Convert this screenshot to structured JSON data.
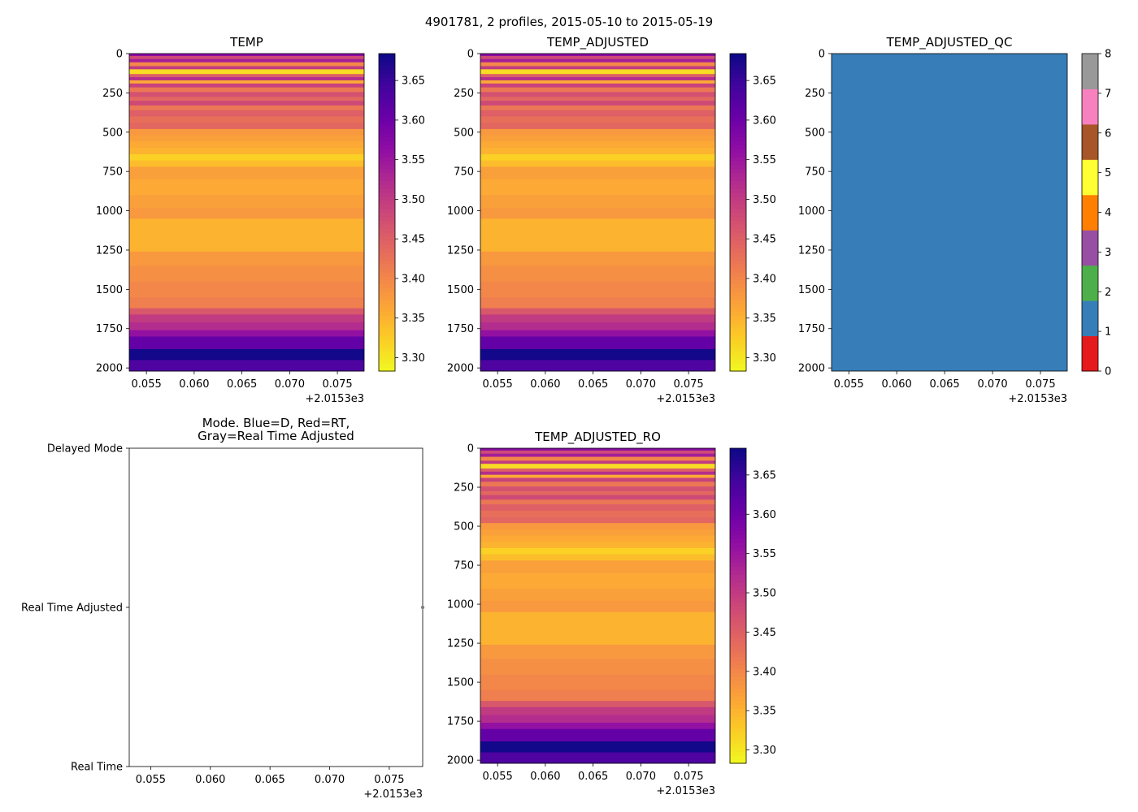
{
  "figure": {
    "suptitle": "4901781, 2 profiles, 2015-05-10 to 2015-05-19",
    "offset_label": "+2.0153e3"
  },
  "colors": {
    "plasma": [
      "#0d0887",
      "#41049d",
      "#6a00a8",
      "#8f0da4",
      "#b12a90",
      "#cc4778",
      "#e16462",
      "#f2844b",
      "#fca636",
      "#fcce25",
      "#f0f921"
    ],
    "qc": [
      "#e41a1c",
      "#377eb8",
      "#4daf4a",
      "#984ea3",
      "#ff7f00",
      "#ffff33",
      "#a65628",
      "#f781bf",
      "#999999"
    ]
  },
  "chart_data": [
    {
      "id": "temp",
      "type": "heatmap",
      "title": "TEMP",
      "variable": "TEMP",
      "x_range": [
        0.0532,
        0.0778
      ],
      "x_ticks": [
        0.055,
        0.06,
        0.065,
        0.07,
        0.075
      ],
      "x_tick_labels": [
        "0.055",
        "0.060",
        "0.065",
        "0.070",
        "0.075"
      ],
      "y_range": [
        2020,
        0
      ],
      "y_ticks": [
        0,
        250,
        500,
        750,
        1000,
        1250,
        1500,
        1750,
        2000
      ],
      "y_tick_labels": [
        "0",
        "250",
        "500",
        "750",
        "1000",
        "1250",
        "1500",
        "1750",
        "2000"
      ],
      "colorbar": {
        "cmap": "plasma_r",
        "vmin": 3.283,
        "vmax": 3.684,
        "ticks": [
          3.3,
          3.35,
          3.4,
          3.45,
          3.5,
          3.55,
          3.6,
          3.65
        ],
        "tick_labels": [
          "3.30",
          "3.35",
          "3.40",
          "3.45",
          "3.50",
          "3.55",
          "3.60",
          "3.65"
        ]
      },
      "profile_layers": [
        {
          "depth_from": 0,
          "depth_to": 15,
          "value": 3.57
        },
        {
          "depth_from": 15,
          "depth_to": 35,
          "value": 3.48
        },
        {
          "depth_from": 35,
          "depth_to": 55,
          "value": 3.54
        },
        {
          "depth_from": 55,
          "depth_to": 80,
          "value": 3.4
        },
        {
          "depth_from": 80,
          "depth_to": 100,
          "value": 3.5
        },
        {
          "depth_from": 100,
          "depth_to": 130,
          "value": 3.31
        },
        {
          "depth_from": 130,
          "depth_to": 150,
          "value": 3.45
        },
        {
          "depth_from": 150,
          "depth_to": 170,
          "value": 3.52
        },
        {
          "depth_from": 170,
          "depth_to": 190,
          "value": 3.36
        },
        {
          "depth_from": 190,
          "depth_to": 215,
          "value": 3.49
        },
        {
          "depth_from": 215,
          "depth_to": 245,
          "value": 3.42
        },
        {
          "depth_from": 245,
          "depth_to": 275,
          "value": 3.47
        },
        {
          "depth_from": 275,
          "depth_to": 300,
          "value": 3.44
        },
        {
          "depth_from": 300,
          "depth_to": 330,
          "value": 3.48
        },
        {
          "depth_from": 330,
          "depth_to": 360,
          "value": 3.42
        },
        {
          "depth_from": 360,
          "depth_to": 400,
          "value": 3.45
        },
        {
          "depth_from": 400,
          "depth_to": 440,
          "value": 3.43
        },
        {
          "depth_from": 440,
          "depth_to": 480,
          "value": 3.44
        },
        {
          "depth_from": 480,
          "depth_to": 520,
          "value": 3.38
        },
        {
          "depth_from": 520,
          "depth_to": 560,
          "value": 3.37
        },
        {
          "depth_from": 560,
          "depth_to": 600,
          "value": 3.36
        },
        {
          "depth_from": 600,
          "depth_to": 640,
          "value": 3.35
        },
        {
          "depth_from": 640,
          "depth_to": 680,
          "value": 3.32
        },
        {
          "depth_from": 680,
          "depth_to": 720,
          "value": 3.34
        },
        {
          "depth_from": 720,
          "depth_to": 800,
          "value": 3.37
        },
        {
          "depth_from": 800,
          "depth_to": 900,
          "value": 3.36
        },
        {
          "depth_from": 900,
          "depth_to": 980,
          "value": 3.37
        },
        {
          "depth_from": 980,
          "depth_to": 1050,
          "value": 3.38
        },
        {
          "depth_from": 1050,
          "depth_to": 1150,
          "value": 3.35
        },
        {
          "depth_from": 1150,
          "depth_to": 1260,
          "value": 3.35
        },
        {
          "depth_from": 1260,
          "depth_to": 1350,
          "value": 3.38
        },
        {
          "depth_from": 1350,
          "depth_to": 1450,
          "value": 3.39
        },
        {
          "depth_from": 1450,
          "depth_to": 1550,
          "value": 3.4
        },
        {
          "depth_from": 1550,
          "depth_to": 1620,
          "value": 3.41
        },
        {
          "depth_from": 1620,
          "depth_to": 1660,
          "value": 3.46
        },
        {
          "depth_from": 1660,
          "depth_to": 1710,
          "value": 3.5
        },
        {
          "depth_from": 1710,
          "depth_to": 1760,
          "value": 3.52
        },
        {
          "depth_from": 1760,
          "depth_to": 1800,
          "value": 3.56
        },
        {
          "depth_from": 1800,
          "depth_to": 1880,
          "value": 3.61
        },
        {
          "depth_from": 1880,
          "depth_to": 1950,
          "value": 3.68
        },
        {
          "depth_from": 1950,
          "depth_to": 2020,
          "value": 3.63
        }
      ]
    },
    {
      "id": "temp-adjusted",
      "type": "heatmap",
      "title": "TEMP_ADJUSTED",
      "variable": "TEMP_ADJUSTED",
      "x_range": [
        0.0532,
        0.0778
      ],
      "x_ticks": [
        0.055,
        0.06,
        0.065,
        0.07,
        0.075
      ],
      "x_tick_labels": [
        "0.055",
        "0.060",
        "0.065",
        "0.070",
        "0.075"
      ],
      "y_range": [
        2020,
        0
      ],
      "y_ticks": [
        0,
        250,
        500,
        750,
        1000,
        1250,
        1500,
        1750,
        2000
      ],
      "y_tick_labels": [
        "0",
        "250",
        "500",
        "750",
        "1000",
        "1250",
        "1500",
        "1750",
        "2000"
      ],
      "colorbar": {
        "cmap": "plasma_r",
        "vmin": 3.283,
        "vmax": 3.684,
        "ticks": [
          3.3,
          3.35,
          3.4,
          3.45,
          3.5,
          3.55,
          3.6,
          3.65
        ],
        "tick_labels": [
          "3.30",
          "3.35",
          "3.40",
          "3.45",
          "3.50",
          "3.55",
          "3.60",
          "3.65"
        ]
      },
      "profile_layers_same_as": "TEMP"
    },
    {
      "id": "temp-adjusted-qc",
      "type": "heatmap",
      "title": "TEMP_ADJUSTED_QC",
      "variable": "TEMP_ADJUSTED_QC",
      "x_range": [
        0.0532,
        0.0778
      ],
      "x_ticks": [
        0.055,
        0.06,
        0.065,
        0.07,
        0.075
      ],
      "x_tick_labels": [
        "0.055",
        "0.060",
        "0.065",
        "0.070",
        "0.075"
      ],
      "y_range": [
        2020,
        0
      ],
      "y_ticks": [
        0,
        250,
        500,
        750,
        1000,
        1250,
        1500,
        1750,
        2000
      ],
      "y_tick_labels": [
        "0",
        "250",
        "500",
        "750",
        "1000",
        "1250",
        "1500",
        "1750",
        "2000"
      ],
      "qc_value": 1,
      "colorbar": {
        "cmap": "qc_categorical",
        "vmin": 0,
        "vmax": 8,
        "ticks": [
          0,
          1,
          2,
          3,
          4,
          5,
          6,
          7,
          8
        ],
        "tick_labels": [
          "0",
          "1",
          "2",
          "3",
          "4",
          "5",
          "6",
          "7",
          "8"
        ]
      }
    },
    {
      "id": "mode",
      "type": "scatter",
      "title": "Mode. Blue=D, Red=RT,",
      "title_line2": "Gray=Real Time Adjusted",
      "x_range": [
        0.0532,
        0.0778
      ],
      "x_ticks": [
        0.055,
        0.06,
        0.065,
        0.07,
        0.075
      ],
      "x_tick_labels": [
        "0.055",
        "0.060",
        "0.065",
        "0.070",
        "0.075"
      ],
      "y_categories": [
        "Real Time",
        "Real Time Adjusted",
        "Delayed Mode"
      ],
      "points": [
        {
          "x": 0.0778,
          "category": "Real Time Adjusted"
        }
      ]
    },
    {
      "id": "temp-adjusted-ro",
      "type": "heatmap",
      "title": "TEMP_ADJUSTED_RO",
      "variable": "TEMP_ADJUSTED_RO",
      "x_range": [
        0.0532,
        0.0778
      ],
      "x_ticks": [
        0.055,
        0.06,
        0.065,
        0.07,
        0.075
      ],
      "x_tick_labels": [
        "0.055",
        "0.060",
        "0.065",
        "0.070",
        "0.075"
      ],
      "y_range": [
        2020,
        0
      ],
      "y_ticks": [
        0,
        250,
        500,
        750,
        1000,
        1250,
        1500,
        1750,
        2000
      ],
      "y_tick_labels": [
        "0",
        "250",
        "500",
        "750",
        "1000",
        "1250",
        "1500",
        "1750",
        "2000"
      ],
      "colorbar": {
        "cmap": "plasma_r",
        "vmin": 3.283,
        "vmax": 3.684,
        "ticks": [
          3.3,
          3.35,
          3.4,
          3.45,
          3.5,
          3.55,
          3.6,
          3.65
        ],
        "tick_labels": [
          "3.30",
          "3.35",
          "3.40",
          "3.45",
          "3.50",
          "3.55",
          "3.60",
          "3.65"
        ]
      },
      "profile_layers_same_as": "TEMP"
    }
  ]
}
